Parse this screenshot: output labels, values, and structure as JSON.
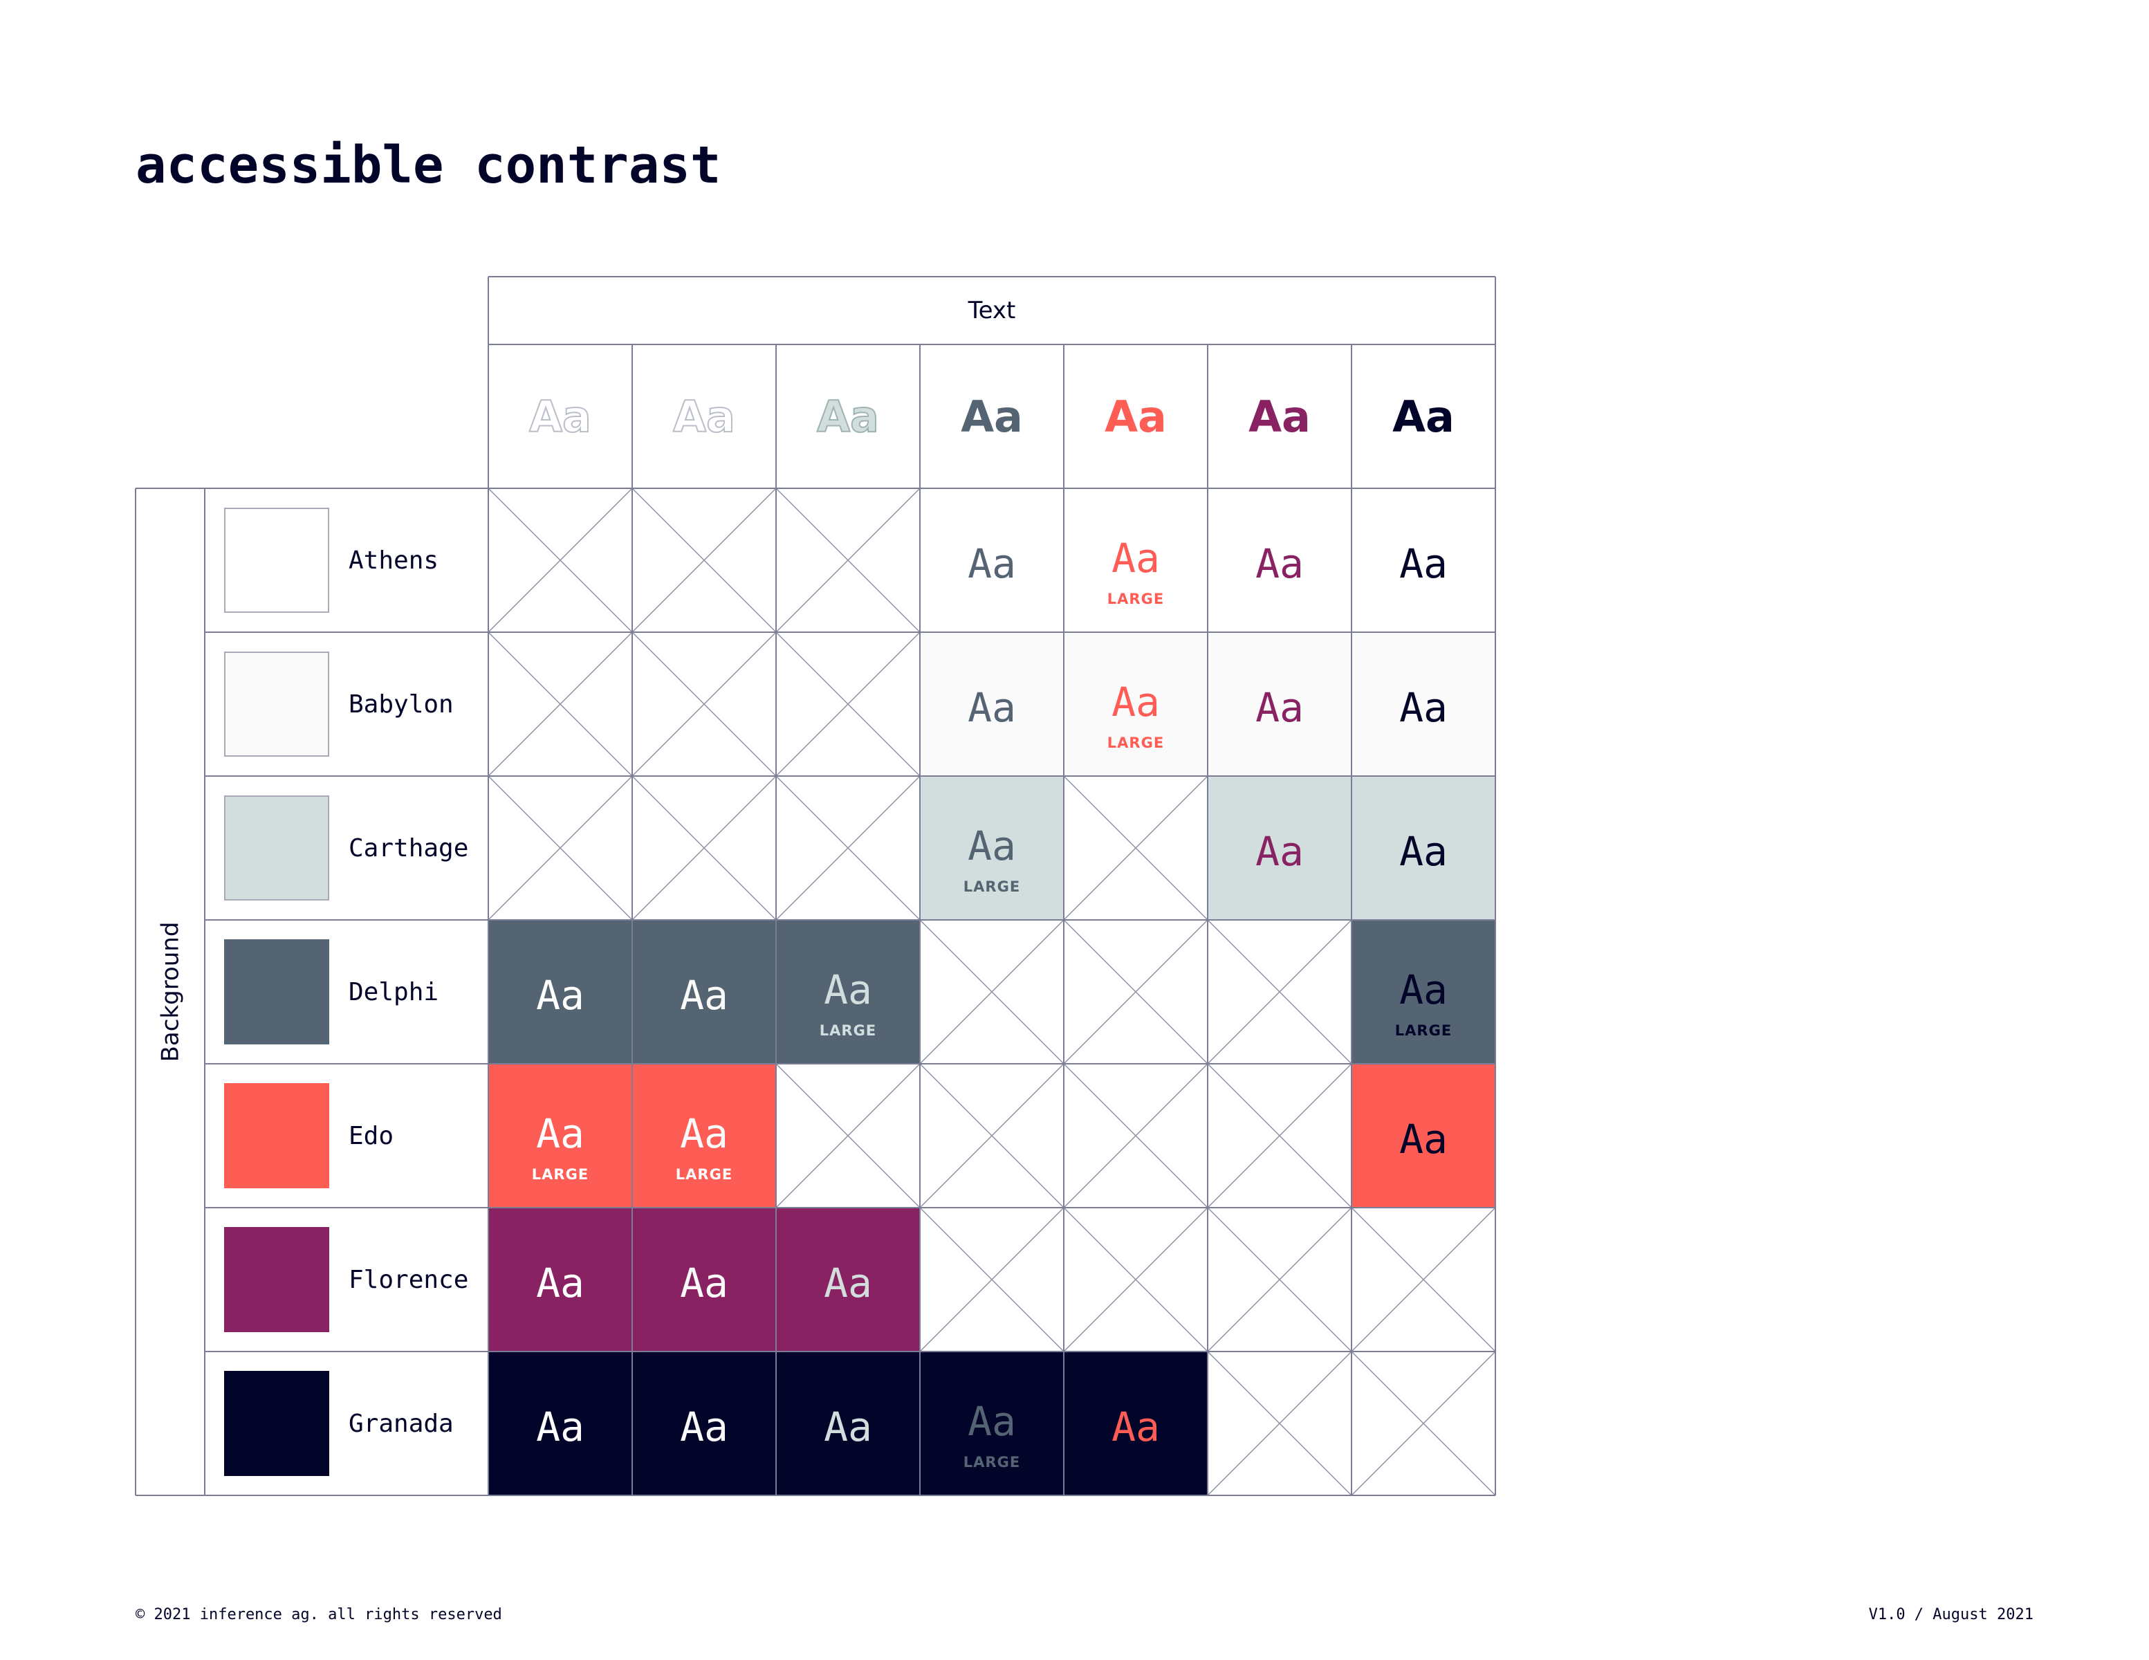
{
  "title": "accessible contrast",
  "text_header": "Text",
  "background_header": "Background",
  "footer": {
    "left": "© 2021 inference ag. all rights reserved",
    "right": "V1.0 / August 2021"
  },
  "text_colors": [
    {
      "name": "Athens",
      "hex": "#ffffff",
      "sample": "Aa"
    },
    {
      "name": "Babylon",
      "hex": "#fafafa",
      "sample": "Aa"
    },
    {
      "name": "Carthage",
      "hex": "#d2dede",
      "sample": "Aa"
    },
    {
      "name": "Delphi",
      "hex": "#546473",
      "sample": "Aa"
    },
    {
      "name": "Edo",
      "hex": "#fd5d55",
      "sample": "Aa"
    },
    {
      "name": "Florence",
      "hex": "#882262",
      "sample": "Aa"
    },
    {
      "name": "Granada",
      "hex": "#03042a",
      "sample": "Aa"
    }
  ],
  "rows": [
    {
      "name": "Athens",
      "hex": "#ffffff",
      "cells": [
        {
          "pass": false
        },
        {
          "pass": false
        },
        {
          "pass": false
        },
        {
          "pass": true,
          "sample": "Aa",
          "note": ""
        },
        {
          "pass": true,
          "sample": "Aa",
          "note": "LARGE"
        },
        {
          "pass": true,
          "sample": "Aa",
          "note": ""
        },
        {
          "pass": true,
          "sample": "Aa",
          "note": ""
        }
      ]
    },
    {
      "name": "Babylon",
      "hex": "#fafafa",
      "cells": [
        {
          "pass": false
        },
        {
          "pass": false
        },
        {
          "pass": false
        },
        {
          "pass": true,
          "sample": "Aa",
          "note": ""
        },
        {
          "pass": true,
          "sample": "Aa",
          "note": "LARGE"
        },
        {
          "pass": true,
          "sample": "Aa",
          "note": ""
        },
        {
          "pass": true,
          "sample": "Aa",
          "note": ""
        }
      ]
    },
    {
      "name": "Carthage",
      "hex": "#d2dede",
      "cells": [
        {
          "pass": false
        },
        {
          "pass": false
        },
        {
          "pass": false
        },
        {
          "pass": true,
          "sample": "Aa",
          "note": "LARGE"
        },
        {
          "pass": false
        },
        {
          "pass": true,
          "sample": "Aa",
          "note": ""
        },
        {
          "pass": true,
          "sample": "Aa",
          "note": ""
        }
      ]
    },
    {
      "name": "Delphi",
      "hex": "#546473",
      "cells": [
        {
          "pass": true,
          "sample": "Aa",
          "note": ""
        },
        {
          "pass": true,
          "sample": "Aa",
          "note": ""
        },
        {
          "pass": true,
          "sample": "Aa",
          "note": "LARGE"
        },
        {
          "pass": false
        },
        {
          "pass": false
        },
        {
          "pass": false
        },
        {
          "pass": true,
          "sample": "Aa",
          "note": "LARGE"
        }
      ]
    },
    {
      "name": "Edo",
      "hex": "#fd5d55",
      "cells": [
        {
          "pass": true,
          "sample": "Aa",
          "note": "LARGE"
        },
        {
          "pass": true,
          "sample": "Aa",
          "note": "LARGE"
        },
        {
          "pass": false
        },
        {
          "pass": false
        },
        {
          "pass": false
        },
        {
          "pass": false
        },
        {
          "pass": true,
          "sample": "Aa",
          "note": ""
        }
      ]
    },
    {
      "name": "Florence",
      "hex": "#882262",
      "cells": [
        {
          "pass": true,
          "sample": "Aa",
          "note": ""
        },
        {
          "pass": true,
          "sample": "Aa",
          "note": ""
        },
        {
          "pass": true,
          "sample": "Aa",
          "note": ""
        },
        {
          "pass": false
        },
        {
          "pass": false
        },
        {
          "pass": false
        },
        {
          "pass": false
        }
      ]
    },
    {
      "name": "Granada",
      "hex": "#03042a",
      "cells": [
        {
          "pass": true,
          "sample": "Aa",
          "note": ""
        },
        {
          "pass": true,
          "sample": "Aa",
          "note": ""
        },
        {
          "pass": true,
          "sample": "Aa",
          "note": ""
        },
        {
          "pass": true,
          "sample": "Aa",
          "note": "LARGE"
        },
        {
          "pass": true,
          "sample": "Aa",
          "note": ""
        },
        {
          "pass": false
        },
        {
          "pass": false
        }
      ]
    }
  ]
}
